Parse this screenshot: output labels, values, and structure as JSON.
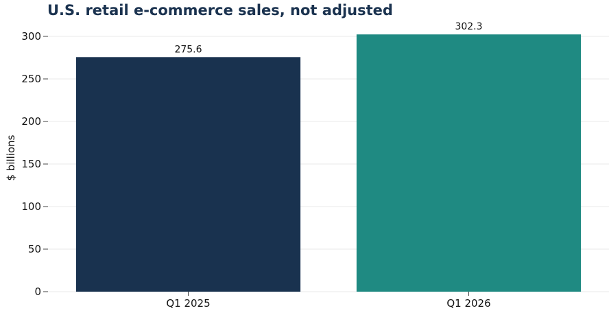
{
  "chart_data": {
    "type": "bar",
    "title": "U.S. retail e-commerce sales, not adjusted",
    "xlabel": "",
    "ylabel": "$ billions",
    "categories": [
      "Q1 2025",
      "Q1 2026"
    ],
    "values": [
      275.6,
      302.3
    ],
    "data_labels": [
      "275.6",
      "302.3"
    ],
    "bar_colors": [
      "#19324f",
      "#1f8a82"
    ],
    "ylim": [
      0,
      300
    ],
    "yticks": [
      0,
      50,
      100,
      150,
      200,
      250,
      300
    ],
    "grid": true,
    "legend": "none"
  }
}
